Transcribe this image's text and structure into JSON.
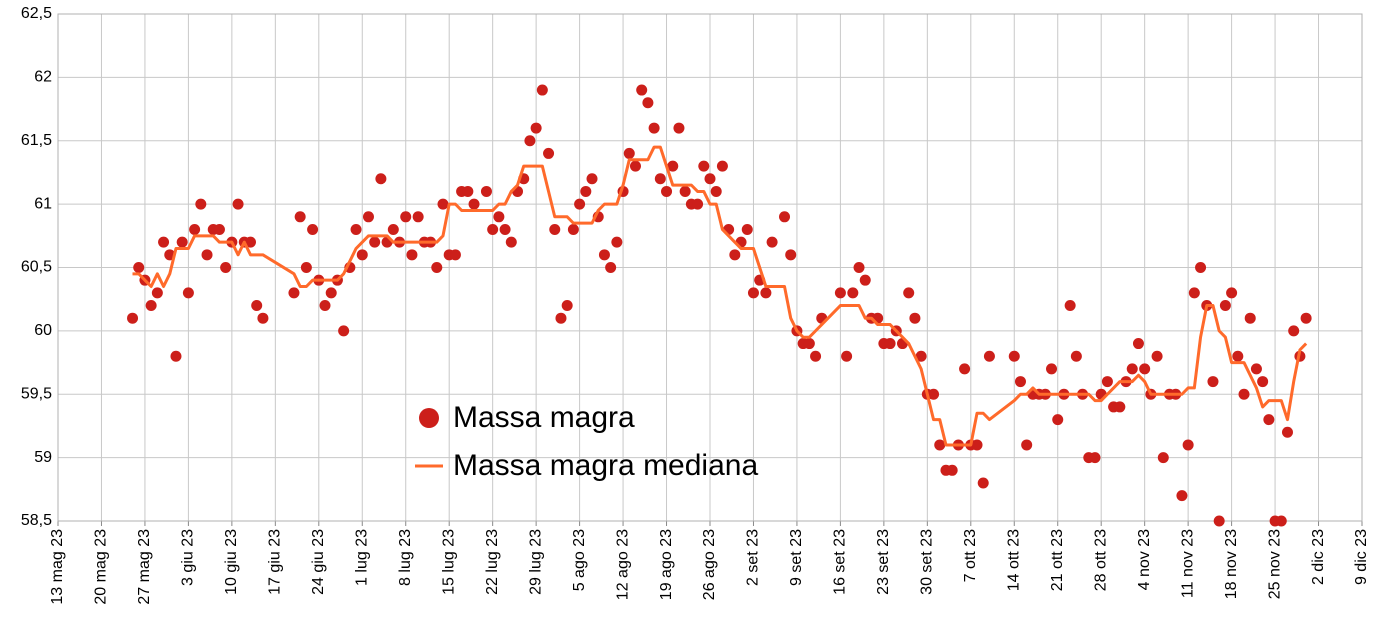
{
  "chart_data": {
    "type": "scatter",
    "xlim": [
      "2023-05-13",
      "2023-12-09"
    ],
    "xticks": [
      {
        "value": "2023-05-13",
        "label": "13 mag 23"
      },
      {
        "value": "2023-05-20",
        "label": "20 mag 23"
      },
      {
        "value": "2023-05-27",
        "label": "27 mag 23"
      },
      {
        "value": "2023-06-03",
        "label": "3 giu 23"
      },
      {
        "value": "2023-06-10",
        "label": "10 giu 23"
      },
      {
        "value": "2023-06-17",
        "label": "17 giu 23"
      },
      {
        "value": "2023-06-24",
        "label": "24 giu 23"
      },
      {
        "value": "2023-07-01",
        "label": "1 lug 23"
      },
      {
        "value": "2023-07-08",
        "label": "8 lug 23"
      },
      {
        "value": "2023-07-15",
        "label": "15 lug 23"
      },
      {
        "value": "2023-07-22",
        "label": "22 lug 23"
      },
      {
        "value": "2023-07-29",
        "label": "29 lug 23"
      },
      {
        "value": "2023-08-05",
        "label": "5 ago 23"
      },
      {
        "value": "2023-08-12",
        "label": "12 ago 23"
      },
      {
        "value": "2023-08-19",
        "label": "19 ago 23"
      },
      {
        "value": "2023-08-26",
        "label": "26 ago 23"
      },
      {
        "value": "2023-09-02",
        "label": "2 set 23"
      },
      {
        "value": "2023-09-09",
        "label": "9 set 23"
      },
      {
        "value": "2023-09-16",
        "label": "16 set 23"
      },
      {
        "value": "2023-09-23",
        "label": "23 set 23"
      },
      {
        "value": "2023-09-30",
        "label": "30 set 23"
      },
      {
        "value": "2023-10-07",
        "label": "7 ott 23"
      },
      {
        "value": "2023-10-14",
        "label": "14 ott 23"
      },
      {
        "value": "2023-10-21",
        "label": "21 ott 23"
      },
      {
        "value": "2023-10-28",
        "label": "28 ott 23"
      },
      {
        "value": "2023-11-04",
        "label": "4 nov 23"
      },
      {
        "value": "2023-11-11",
        "label": "11 nov 23"
      },
      {
        "value": "2023-11-18",
        "label": "18 nov 23"
      },
      {
        "value": "2023-11-25",
        "label": "25 nov 23"
      },
      {
        "value": "2023-12-02",
        "label": "2 dic 23"
      },
      {
        "value": "2023-12-09",
        "label": "9 dic 23"
      }
    ],
    "ylim": [
      58.5,
      62.5
    ],
    "yticks": [
      {
        "value": 58.5,
        "label": "58,5"
      },
      59,
      {
        "value": 59.5,
        "label": "59,5"
      },
      60,
      {
        "value": 60.5,
        "label": "60,5"
      },
      61,
      {
        "value": 61.5,
        "label": "61,5"
      },
      62,
      {
        "value": 62.5,
        "label": "62,5"
      }
    ],
    "grid": true,
    "legend": "lower center",
    "x": [
      "2023-05-25",
      "2023-05-26",
      "2023-05-27",
      "2023-05-28",
      "2023-05-29",
      "2023-05-30",
      "2023-05-31",
      "2023-06-01",
      "2023-06-02",
      "2023-06-03",
      "2023-06-04",
      "2023-06-05",
      "2023-06-06",
      "2023-06-07",
      "2023-06-08",
      "2023-06-09",
      "2023-06-10",
      "2023-06-11",
      "2023-06-12",
      "2023-06-13",
      "2023-06-14",
      "2023-06-15",
      "2023-06-20",
      "2023-06-21",
      "2023-06-22",
      "2023-06-23",
      "2023-06-24",
      "2023-06-25",
      "2023-06-26",
      "2023-06-27",
      "2023-06-28",
      "2023-06-29",
      "2023-06-30",
      "2023-07-01",
      "2023-07-02",
      "2023-07-03",
      "2023-07-04",
      "2023-07-05",
      "2023-07-06",
      "2023-07-07",
      "2023-07-08",
      "2023-07-09",
      "2023-07-10",
      "2023-07-11",
      "2023-07-12",
      "2023-07-13",
      "2023-07-14",
      "2023-07-15",
      "2023-07-16",
      "2023-07-17",
      "2023-07-18",
      "2023-07-19",
      "2023-07-21",
      "2023-07-22",
      "2023-07-23",
      "2023-07-24",
      "2023-07-25",
      "2023-07-26",
      "2023-07-27",
      "2023-07-28",
      "2023-07-29",
      "2023-07-30",
      "2023-07-31",
      "2023-08-01",
      "2023-08-02",
      "2023-08-03",
      "2023-08-04",
      "2023-08-05",
      "2023-08-06",
      "2023-08-07",
      "2023-08-08",
      "2023-08-09",
      "2023-08-10",
      "2023-08-11",
      "2023-08-12",
      "2023-08-13",
      "2023-08-14",
      "2023-08-15",
      "2023-08-16",
      "2023-08-17",
      "2023-08-18",
      "2023-08-19",
      "2023-08-20",
      "2023-08-21",
      "2023-08-22",
      "2023-08-23",
      "2023-08-24",
      "2023-08-25",
      "2023-08-26",
      "2023-08-27",
      "2023-08-28",
      "2023-08-29",
      "2023-08-30",
      "2023-08-31",
      "2023-09-01",
      "2023-09-02",
      "2023-09-03",
      "2023-09-04",
      "2023-09-05",
      "2023-09-07",
      "2023-09-08",
      "2023-09-09",
      "2023-09-10",
      "2023-09-11",
      "2023-09-12",
      "2023-09-13",
      "2023-09-16",
      "2023-09-17",
      "2023-09-18",
      "2023-09-19",
      "2023-09-20",
      "2023-09-21",
      "2023-09-22",
      "2023-09-23",
      "2023-09-24",
      "2023-09-25",
      "2023-09-26",
      "2023-09-27",
      "2023-09-28",
      "2023-09-29",
      "2023-09-30",
      "2023-10-01",
      "2023-10-02",
      "2023-10-03",
      "2023-10-04",
      "2023-10-05",
      "2023-10-06",
      "2023-10-07",
      "2023-10-08",
      "2023-10-09",
      "2023-10-10",
      "2023-10-14",
      "2023-10-15",
      "2023-10-16",
      "2023-10-17",
      "2023-10-18",
      "2023-10-19",
      "2023-10-20",
      "2023-10-21",
      "2023-10-22",
      "2023-10-23",
      "2023-10-24",
      "2023-10-25",
      "2023-10-26",
      "2023-10-27",
      "2023-10-28",
      "2023-10-29",
      "2023-10-30",
      "2023-10-31",
      "2023-11-01",
      "2023-11-02",
      "2023-11-03",
      "2023-11-04",
      "2023-11-05",
      "2023-11-06",
      "2023-11-07",
      "2023-11-08",
      "2023-11-09",
      "2023-11-10",
      "2023-11-11",
      "2023-11-12",
      "2023-11-13",
      "2023-11-14",
      "2023-11-15",
      "2023-11-16",
      "2023-11-17",
      "2023-11-18",
      "2023-11-19",
      "2023-11-20",
      "2023-11-21",
      "2023-11-22",
      "2023-11-23",
      "2023-11-24",
      "2023-11-25",
      "2023-11-26",
      "2023-11-27",
      "2023-11-28",
      "2023-11-29",
      "2023-11-30"
    ],
    "series": [
      {
        "name": "Massa magra",
        "type": "scatter",
        "color": "#cc1f1a",
        "values": [
          60.1,
          60.5,
          60.4,
          60.2,
          60.3,
          60.7,
          60.6,
          59.8,
          60.7,
          60.3,
          60.8,
          61.0,
          60.6,
          60.8,
          60.8,
          60.5,
          60.7,
          61.0,
          60.7,
          60.7,
          60.2,
          60.1,
          60.3,
          60.9,
          60.5,
          60.8,
          60.4,
          60.2,
          60.3,
          60.4,
          60.0,
          60.5,
          60.8,
          60.6,
          60.9,
          60.7,
          61.2,
          60.7,
          60.8,
          60.7,
          60.9,
          60.6,
          60.9,
          60.7,
          60.7,
          60.5,
          61.0,
          60.6,
          60.6,
          61.1,
          61.1,
          61.0,
          61.1,
          60.8,
          60.9,
          60.8,
          60.7,
          61.1,
          61.2,
          61.5,
          61.6,
          61.9,
          61.4,
          60.8,
          60.1,
          60.2,
          60.8,
          61.0,
          61.1,
          61.2,
          60.9,
          60.6,
          60.5,
          60.7,
          61.1,
          61.4,
          61.3,
          61.9,
          61.8,
          61.6,
          61.2,
          61.1,
          61.3,
          61.6,
          61.1,
          61.0,
          61.0,
          61.3,
          61.2,
          61.1,
          61.3,
          60.8,
          60.6,
          60.7,
          60.8,
          60.3,
          60.4,
          60.3,
          60.7,
          60.9,
          60.6,
          60.0,
          59.9,
          59.9,
          59.8,
          60.1,
          60.3,
          59.8,
          60.3,
          60.5,
          60.4,
          60.1,
          60.1,
          59.9,
          59.9,
          60.0,
          59.9,
          60.3,
          60.1,
          59.8,
          59.5,
          59.5,
          59.1,
          58.9,
          58.9,
          59.1,
          59.7,
          59.1,
          59.1,
          58.8,
          59.8,
          59.8,
          59.6,
          59.1,
          59.5,
          59.5,
          59.5,
          59.7,
          59.3,
          59.5,
          60.2,
          59.8,
          59.5,
          59.0,
          59.0,
          59.5,
          59.6,
          59.4,
          59.4,
          59.6,
          59.7,
          59.9,
          59.7,
          59.5,
          59.8,
          59.0,
          59.5,
          59.5,
          58.7,
          59.1,
          60.3,
          60.5,
          60.2,
          59.6,
          58.5,
          60.2,
          60.3,
          59.8,
          59.5,
          60.1,
          59.7,
          59.6,
          59.3,
          58.5,
          58.5,
          59.2,
          60.0,
          59.8,
          60.1
        ]
      },
      {
        "name": "Massa magra mediana",
        "type": "line",
        "color": "#ff6a2b",
        "values": [
          60.45,
          60.45,
          60.4,
          60.35,
          60.45,
          60.35,
          60.45,
          60.65,
          60.65,
          60.65,
          60.75,
          60.75,
          60.75,
          60.75,
          60.7,
          60.7,
          60.7,
          60.6,
          60.7,
          60.6,
          60.6,
          60.6,
          60.45,
          60.35,
          60.35,
          60.4,
          60.4,
          60.4,
          60.4,
          60.4,
          60.45,
          60.55,
          60.65,
          60.7,
          60.75,
          60.75,
          60.75,
          60.75,
          60.7,
          60.7,
          60.7,
          60.7,
          60.7,
          60.7,
          60.7,
          60.7,
          60.75,
          61.0,
          61.0,
          60.95,
          60.95,
          60.95,
          60.95,
          60.95,
          61.0,
          61.0,
          61.1,
          61.15,
          61.3,
          61.3,
          61.3,
          61.3,
          61.1,
          60.9,
          60.9,
          60.9,
          60.85,
          60.85,
          60.85,
          60.85,
          60.95,
          61.0,
          61.0,
          61.0,
          61.15,
          61.35,
          61.35,
          61.35,
          61.35,
          61.45,
          61.45,
          61.3,
          61.15,
          61.15,
          61.15,
          61.15,
          61.1,
          61.1,
          61.0,
          61.0,
          60.8,
          60.75,
          60.7,
          60.65,
          60.65,
          60.65,
          60.5,
          60.35,
          60.35,
          60.35,
          60.1,
          60.0,
          59.95,
          59.95,
          60.0,
          60.05,
          60.2,
          60.2,
          60.2,
          60.2,
          60.1,
          60.1,
          60.05,
          60.05,
          60.05,
          60.0,
          59.95,
          59.9,
          59.8,
          59.7,
          59.5,
          59.3,
          59.3,
          59.1,
          59.1,
          59.1,
          59.1,
          59.1,
          59.35,
          59.35,
          59.3,
          59.45,
          59.5,
          59.5,
          59.55,
          59.5,
          59.5,
          59.5,
          59.5,
          59.5,
          59.5,
          59.5,
          59.5,
          59.5,
          59.45,
          59.45,
          59.5,
          59.55,
          59.6,
          59.6,
          59.6,
          59.65,
          59.6,
          59.5,
          59.5,
          59.5,
          59.5,
          59.5,
          59.5,
          59.55,
          59.55,
          59.95,
          60.2,
          60.2,
          60.0,
          59.95,
          59.75,
          59.75,
          59.75,
          59.65,
          59.55,
          59.4,
          59.45,
          59.45,
          59.45,
          59.3,
          59.6,
          59.85,
          59.9
        ]
      }
    ]
  }
}
